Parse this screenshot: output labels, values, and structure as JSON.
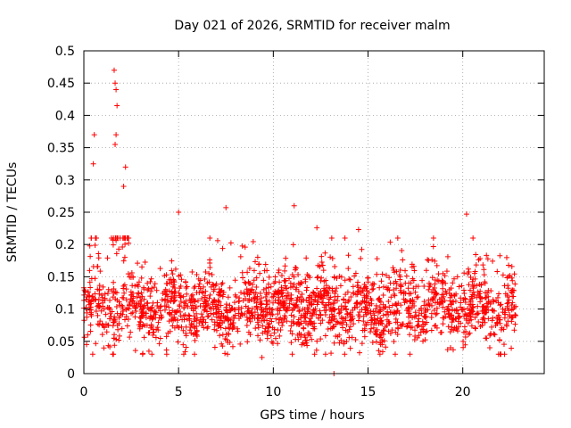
{
  "chart_data": {
    "type": "scatter",
    "title": "Day 021 of 2026, SRMTID for receiver malm",
    "xlabel": "GPS time / hours",
    "ylabel": "SRMTID / TECUs",
    "xlim": [
      0,
      24.3
    ],
    "ylim": [
      0,
      0.5
    ],
    "x_ticks": [
      0,
      5,
      10,
      15,
      20
    ],
    "y_ticks": [
      0,
      0.05,
      0.1,
      0.15,
      0.2,
      0.25,
      0.3,
      0.35,
      0.4,
      0.45,
      0.5
    ],
    "x_tick_labels": [
      "0",
      "5",
      "10",
      "15",
      "20"
    ],
    "y_tick_labels": [
      "0",
      "0.05",
      "0.1",
      "0.15",
      "0.2",
      "0.25",
      "0.3",
      "0.35",
      "0.4",
      "0.45",
      "0.5"
    ],
    "grid": true,
    "marker": "+",
    "color": "#ff0000",
    "series": [
      {
        "name": "SRMTID",
        "sampling": "dense scatter, roughly 2000 points spanning 0 to 22.8 h",
        "baseline_band": [
          0.05,
          0.17
        ],
        "typical_value": 0.1,
        "highlights": [
          {
            "x": 1.6,
            "y": 0.47
          },
          {
            "x": 1.65,
            "y": 0.45
          },
          {
            "x": 1.7,
            "y": 0.44
          },
          {
            "x": 1.75,
            "y": 0.415
          },
          {
            "x": 0.55,
            "y": 0.37
          },
          {
            "x": 0.5,
            "y": 0.325
          },
          {
            "x": 1.7,
            "y": 0.37
          },
          {
            "x": 1.65,
            "y": 0.355
          },
          {
            "x": 2.2,
            "y": 0.32
          },
          {
            "x": 2.1,
            "y": 0.29
          },
          {
            "x": 5.0,
            "y": 0.25
          },
          {
            "x": 7.5,
            "y": 0.257
          },
          {
            "x": 11.1,
            "y": 0.26
          },
          {
            "x": 20.2,
            "y": 0.247
          },
          {
            "x": 12.3,
            "y": 0.226
          },
          {
            "x": 14.5,
            "y": 0.223
          },
          {
            "x": 3.1,
            "y": 0.03
          },
          {
            "x": 9.4,
            "y": 0.025
          },
          {
            "x": 13.2,
            "y": 0.0
          }
        ]
      }
    ]
  }
}
